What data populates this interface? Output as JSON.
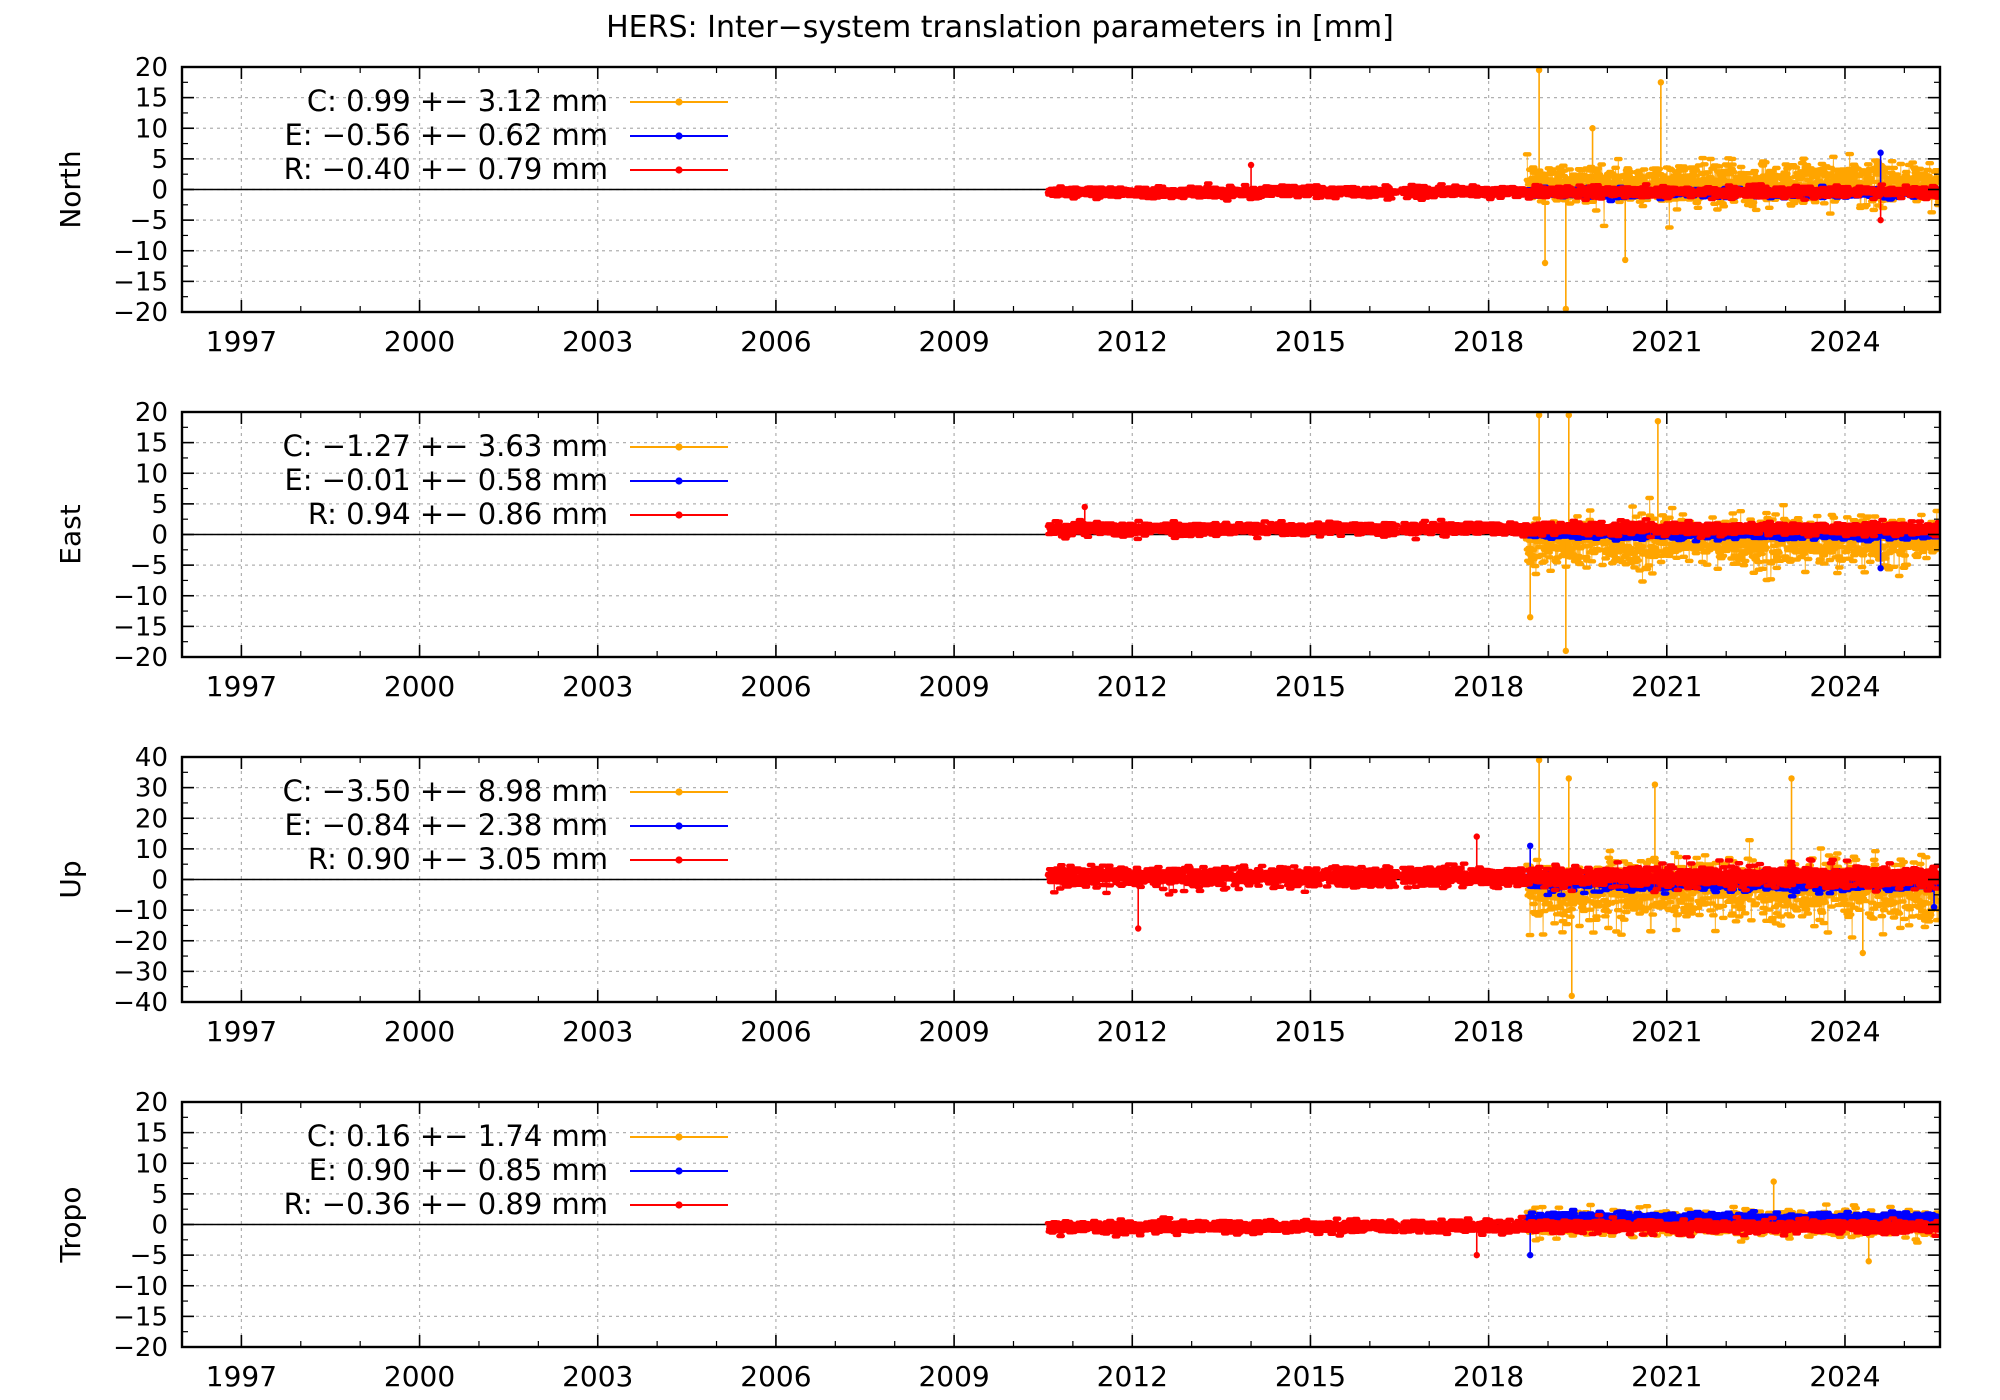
{
  "title": "HERS: Inter−system translation parameters in [mm]",
  "colors": {
    "C": "#ffa500",
    "E": "#0000ff",
    "R": "#ff0000",
    "grid": "#b0b0b0",
    "axis": "#000000"
  },
  "x_ticks": [
    1997,
    2000,
    2003,
    2006,
    2009,
    2012,
    2015,
    2018,
    2021,
    2024
  ],
  "chart_data": [
    {
      "type": "scatter",
      "ylabel": "North",
      "xlim": [
        1996,
        2025.6
      ],
      "ylim": [
        -20,
        20
      ],
      "y_ticks": [
        -20,
        -15,
        -10,
        -5,
        0,
        5,
        10,
        15,
        20
      ],
      "grid": true,
      "legend": "top-left",
      "series": [
        {
          "name": "C",
          "label": "C:   0.99 +− 3.12 mm",
          "mean": 0.99,
          "std": 3.12,
          "start": 2018.65,
          "end": 2025.6,
          "peaks": [
            [
              2018.85,
              19.5
            ],
            [
              2019.3,
              -19.5
            ],
            [
              2020.9,
              17.5
            ],
            [
              2018.95,
              -12
            ],
            [
              2020.3,
              -11.5
            ],
            [
              2019.75,
              10
            ]
          ]
        },
        {
          "name": "E",
          "label": "E:  −0.56 +− 0.62 mm",
          "mean": -0.56,
          "std": 0.62,
          "start": 2018.65,
          "end": 2025.6,
          "peaks": [
            [
              2024.6,
              6
            ]
          ]
        },
        {
          "name": "R",
          "label": "R:  −0.40 +− 0.79 mm",
          "mean": -0.4,
          "std": 0.79,
          "start": 2010.6,
          "end": 2025.6,
          "peaks": [
            [
              2014.0,
              4
            ],
            [
              2024.6,
              -5
            ]
          ]
        }
      ]
    },
    {
      "type": "scatter",
      "ylabel": "East",
      "xlim": [
        1996,
        2025.6
      ],
      "ylim": [
        -20,
        20
      ],
      "y_ticks": [
        -20,
        -15,
        -10,
        -5,
        0,
        5,
        10,
        15,
        20
      ],
      "grid": true,
      "legend": "top-left",
      "series": [
        {
          "name": "C",
          "label": "C:  −1.27 +− 3.63 mm",
          "mean": -1.27,
          "std": 3.63,
          "start": 2018.65,
          "end": 2025.6,
          "peaks": [
            [
              2018.85,
              19.5
            ],
            [
              2019.35,
              19.5
            ],
            [
              2020.85,
              18.5
            ],
            [
              2019.3,
              -19
            ],
            [
              2018.7,
              -13.5
            ]
          ]
        },
        {
          "name": "E",
          "label": "E:  −0.01 +− 0.58 mm",
          "mean": -0.01,
          "std": 0.58,
          "start": 2018.65,
          "end": 2025.6,
          "peaks": [
            [
              2024.6,
              -5.5
            ]
          ]
        },
        {
          "name": "R",
          "label": "R:   0.94 +− 0.86 mm",
          "mean": 0.94,
          "std": 0.86,
          "start": 2010.6,
          "end": 2025.6,
          "peaks": [
            [
              2011.2,
              4.5
            ]
          ]
        }
      ]
    },
    {
      "type": "scatter",
      "ylabel": "Up",
      "xlim": [
        1996,
        2025.6
      ],
      "ylim": [
        -40,
        40
      ],
      "y_ticks": [
        -40,
        -30,
        -20,
        -10,
        0,
        10,
        20,
        30,
        40
      ],
      "grid": true,
      "legend": "top-left",
      "series": [
        {
          "name": "C",
          "label": "C:  −3.50 +− 8.98 mm",
          "mean": -3.5,
          "std": 8.98,
          "start": 2018.65,
          "end": 2025.6,
          "peaks": [
            [
              2018.85,
              39
            ],
            [
              2019.35,
              33
            ],
            [
              2019.4,
              -38
            ],
            [
              2020.8,
              31
            ],
            [
              2023.1,
              33
            ],
            [
              2024.3,
              -24
            ]
          ]
        },
        {
          "name": "E",
          "label": "E:  −0.84 +− 2.38 mm",
          "mean": -0.84,
          "std": 2.38,
          "start": 2018.65,
          "end": 2025.6,
          "peaks": [
            [
              2018.7,
              11
            ],
            [
              2025.5,
              -9
            ]
          ]
        },
        {
          "name": "R",
          "label": "R:   0.90 +− 3.05 mm",
          "mean": 0.9,
          "std": 3.05,
          "start": 2010.6,
          "end": 2025.6,
          "peaks": [
            [
              2012.1,
              -16
            ],
            [
              2017.8,
              14
            ]
          ]
        }
      ]
    },
    {
      "type": "scatter",
      "ylabel": "Tropo",
      "xlim": [
        1996,
        2025.6
      ],
      "ylim": [
        -20,
        20
      ],
      "y_ticks": [
        -20,
        -15,
        -10,
        -5,
        0,
        5,
        10,
        15,
        20
      ],
      "grid": true,
      "legend": "top-left",
      "series": [
        {
          "name": "C",
          "label": "C:   0.16 +− 1.74 mm",
          "mean": 0.16,
          "std": 1.74,
          "start": 2018.65,
          "end": 2025.6,
          "peaks": [
            [
              2022.8,
              7
            ],
            [
              2024.4,
              -6
            ]
          ]
        },
        {
          "name": "E",
          "label": "E:   0.90 +− 0.85 mm",
          "mean": 0.9,
          "std": 0.85,
          "start": 2018.65,
          "end": 2025.6,
          "peaks": [
            [
              2018.7,
              -5
            ]
          ]
        },
        {
          "name": "R",
          "label": "R:  −0.36 +− 0.89 mm",
          "mean": -0.36,
          "std": 0.89,
          "start": 2010.6,
          "end": 2025.6,
          "peaks": [
            [
              2017.8,
              -5
            ]
          ]
        }
      ]
    }
  ]
}
